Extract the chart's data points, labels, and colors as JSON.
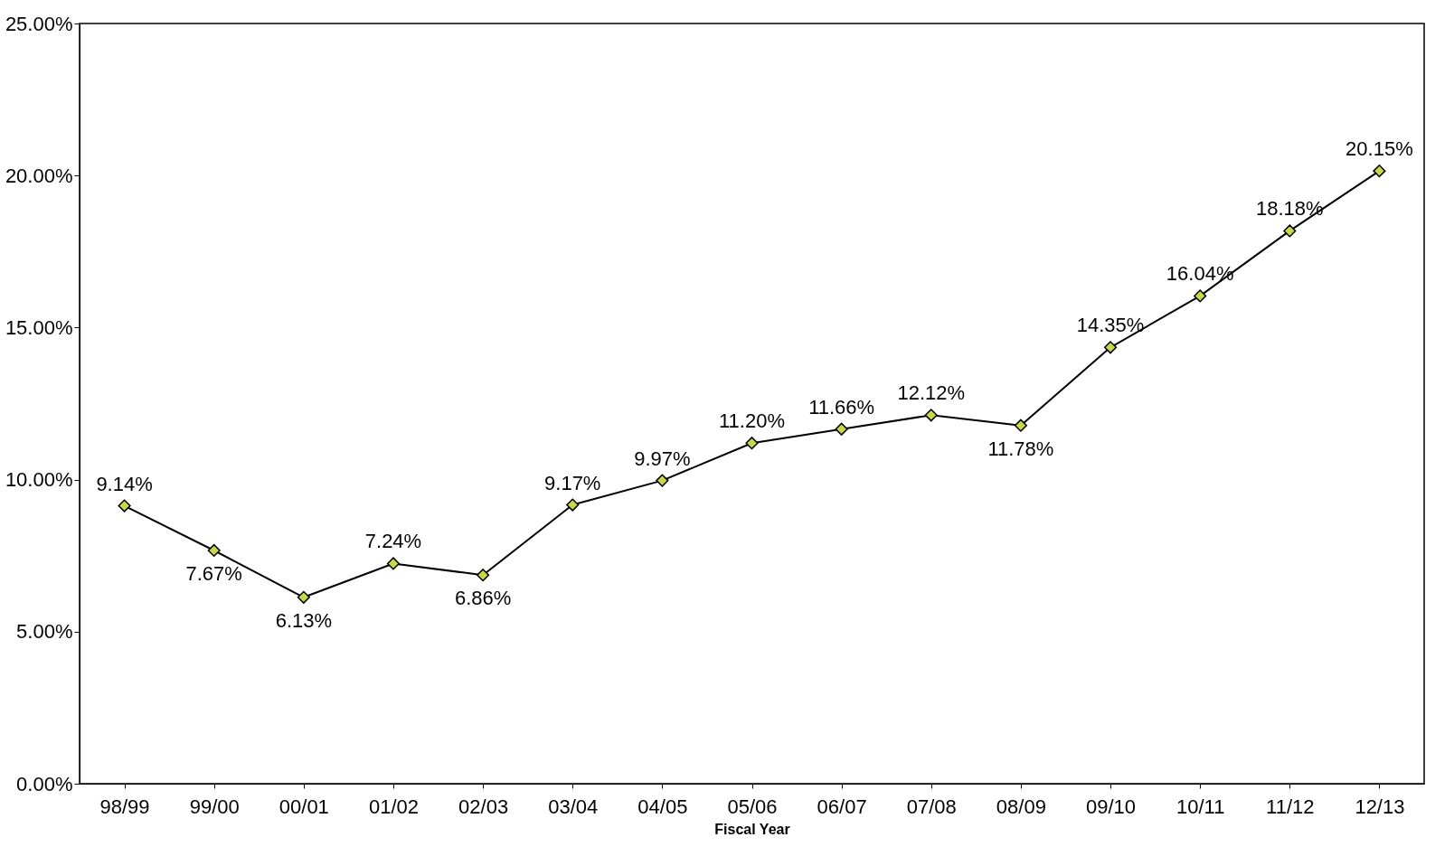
{
  "chart_data": {
    "type": "line",
    "xlabel": "Fiscal Year",
    "categories": [
      "98/99",
      "99/00",
      "00/01",
      "01/02",
      "02/03",
      "03/04",
      "04/05",
      "05/06",
      "06/07",
      "07/08",
      "08/09",
      "09/10",
      "10/11",
      "11/12",
      "12/13"
    ],
    "series": [
      {
        "color": "#c8d84a",
        "values": [
          9.14,
          7.67,
          6.13,
          7.24,
          6.86,
          9.17,
          9.97,
          11.2,
          11.66,
          12.12,
          11.78,
          14.35,
          16.04,
          18.18,
          20.15
        ],
        "value_labels": [
          "9.14%",
          "7.67%",
          "6.13%",
          "7.24%",
          "6.86%",
          "9.17%",
          "9.97%",
          "11.20%",
          "11.66%",
          "12.12%",
          "11.78%",
          "14.35%",
          "16.04%",
          "18.18%",
          "20.15%"
        ]
      }
    ],
    "ylim": [
      0,
      25
    ],
    "yticks": [
      {
        "value": 0,
        "label": "0.00%"
      },
      {
        "value": 5,
        "label": "5.00%"
      },
      {
        "value": 10,
        "label": "10.00%"
      },
      {
        "value": 15,
        "label": "15.00%"
      },
      {
        "value": 20,
        "label": "20.00%"
      },
      {
        "value": 25,
        "label": "25.00%"
      }
    ],
    "marker": "diamond",
    "line_style": "solid",
    "grid": false
  }
}
